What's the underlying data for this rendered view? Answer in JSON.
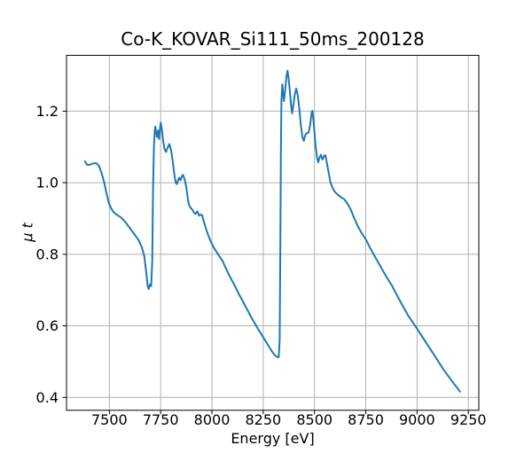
{
  "figure": {
    "background": "#ffffff"
  },
  "chart_data": {
    "type": "line",
    "title": "Co-K_KOVAR_Si111_50ms_200128",
    "xlabel": "Energy [eV]",
    "ylabel": "μ t",
    "xlim": [
      7291,
      9301
    ],
    "ylim": [
      0.364,
      1.356
    ],
    "xticks": [
      7500,
      7750,
      8000,
      8250,
      8500,
      8750,
      9000,
      9250
    ],
    "xtick_labels": [
      "7500",
      "7750",
      "8000",
      "8250",
      "8500",
      "8750",
      "9000",
      "9250"
    ],
    "yticks": [
      0.4,
      0.6,
      0.8,
      1.0,
      1.2
    ],
    "ytick_labels": [
      "0.4",
      "0.6",
      "0.8",
      "1.0",
      "1.2"
    ],
    "grid": true,
    "legend": null,
    "line_color": "#1f77b4",
    "grid_color": "#b0b0b0",
    "spine_color": "#000000",
    "series": [
      {
        "name": "mu_t",
        "points": [
          [
            7381,
            1.06
          ],
          [
            7388,
            1.053
          ],
          [
            7396,
            1.049
          ],
          [
            7408,
            1.051
          ],
          [
            7422,
            1.054
          ],
          [
            7438,
            1.054
          ],
          [
            7450,
            1.046
          ],
          [
            7462,
            1.027
          ],
          [
            7475,
            1.0
          ],
          [
            7487,
            0.968
          ],
          [
            7497,
            0.944
          ],
          [
            7508,
            0.929
          ],
          [
            7520,
            0.918
          ],
          [
            7538,
            0.91
          ],
          [
            7558,
            0.902
          ],
          [
            7578,
            0.89
          ],
          [
            7600,
            0.873
          ],
          [
            7622,
            0.856
          ],
          [
            7642,
            0.84
          ],
          [
            7658,
            0.82
          ],
          [
            7670,
            0.795
          ],
          [
            7680,
            0.748
          ],
          [
            7687,
            0.71
          ],
          [
            7692,
            0.703
          ],
          [
            7698,
            0.716
          ],
          [
            7704,
            0.711
          ],
          [
            7709,
            0.78
          ],
          [
            7713,
            0.98
          ],
          [
            7717,
            1.1
          ],
          [
            7721,
            1.145
          ],
          [
            7724,
            1.157
          ],
          [
            7728,
            1.141
          ],
          [
            7732,
            1.128
          ],
          [
            7737,
            1.146
          ],
          [
            7742,
            1.122
          ],
          [
            7747,
            1.152
          ],
          [
            7750,
            1.168
          ],
          [
            7756,
            1.148
          ],
          [
            7762,
            1.116
          ],
          [
            7769,
            1.094
          ],
          [
            7776,
            1.086
          ],
          [
            7785,
            1.099
          ],
          [
            7793,
            1.108
          ],
          [
            7801,
            1.09
          ],
          [
            7809,
            1.06
          ],
          [
            7817,
            1.022
          ],
          [
            7824,
            0.999
          ],
          [
            7829,
            0.996
          ],
          [
            7836,
            1.009
          ],
          [
            7841,
            1.014
          ],
          [
            7847,
            1.007
          ],
          [
            7854,
            1.018
          ],
          [
            7859,
            1.022
          ],
          [
            7867,
            1.009
          ],
          [
            7875,
            0.988
          ],
          [
            7883,
            0.952
          ],
          [
            7889,
            0.937
          ],
          [
            7896,
            0.93
          ],
          [
            7904,
            0.925
          ],
          [
            7913,
            0.916
          ],
          [
            7921,
            0.913
          ],
          [
            7929,
            0.92
          ],
          [
            7937,
            0.908
          ],
          [
            7946,
            0.911
          ],
          [
            7952,
            0.909
          ],
          [
            7960,
            0.892
          ],
          [
            7970,
            0.873
          ],
          [
            7982,
            0.853
          ],
          [
            7996,
            0.833
          ],
          [
            8012,
            0.816
          ],
          [
            8032,
            0.798
          ],
          [
            8052,
            0.781
          ],
          [
            8078,
            0.748
          ],
          [
            8105,
            0.719
          ],
          [
            8132,
            0.688
          ],
          [
            8162,
            0.656
          ],
          [
            8192,
            0.624
          ],
          [
            8222,
            0.594
          ],
          [
            8250,
            0.568
          ],
          [
            8272,
            0.548
          ],
          [
            8292,
            0.529
          ],
          [
            8308,
            0.517
          ],
          [
            8320,
            0.512
          ],
          [
            8326,
            0.513
          ],
          [
            8330,
            0.56
          ],
          [
            8333,
            0.8
          ],
          [
            8336,
            1.08
          ],
          [
            8339,
            1.23
          ],
          [
            8343,
            1.275
          ],
          [
            8347,
            1.252
          ],
          [
            8351,
            1.228
          ],
          [
            8357,
            1.258
          ],
          [
            8363,
            1.296
          ],
          [
            8368,
            1.313
          ],
          [
            8373,
            1.295
          ],
          [
            8379,
            1.262
          ],
          [
            8386,
            1.215
          ],
          [
            8391,
            1.194
          ],
          [
            8397,
            1.218
          ],
          [
            8404,
            1.247
          ],
          [
            8411,
            1.263
          ],
          [
            8418,
            1.246
          ],
          [
            8426,
            1.208
          ],
          [
            8433,
            1.163
          ],
          [
            8441,
            1.128
          ],
          [
            8448,
            1.117
          ],
          [
            8455,
            1.133
          ],
          [
            8463,
            1.139
          ],
          [
            8471,
            1.14
          ],
          [
            8479,
            1.162
          ],
          [
            8486,
            1.196
          ],
          [
            8490,
            1.201
          ],
          [
            8497,
            1.163
          ],
          [
            8504,
            1.11
          ],
          [
            8512,
            1.071
          ],
          [
            8518,
            1.057
          ],
          [
            8525,
            1.071
          ],
          [
            8531,
            1.078
          ],
          [
            8539,
            1.065
          ],
          [
            8547,
            1.075
          ],
          [
            8553,
            1.077
          ],
          [
            8561,
            1.053
          ],
          [
            8569,
            1.028
          ],
          [
            8577,
            1.003
          ],
          [
            8585,
            0.989
          ],
          [
            8596,
            0.977
          ],
          [
            8612,
            0.967
          ],
          [
            8630,
            0.959
          ],
          [
            8645,
            0.954
          ],
          [
            8660,
            0.942
          ],
          [
            8676,
            0.926
          ],
          [
            8692,
            0.903
          ],
          [
            8710,
            0.88
          ],
          [
            8728,
            0.861
          ],
          [
            8750,
            0.842
          ],
          [
            8772,
            0.817
          ],
          [
            8800,
            0.788
          ],
          [
            8827,
            0.761
          ],
          [
            8852,
            0.736
          ],
          [
            8876,
            0.714
          ],
          [
            8912,
            0.675
          ],
          [
            8955,
            0.63
          ],
          [
            9000,
            0.592
          ],
          [
            9045,
            0.552
          ],
          [
            9088,
            0.515
          ],
          [
            9130,
            0.477
          ],
          [
            9172,
            0.444
          ],
          [
            9210,
            0.416
          ]
        ]
      }
    ]
  }
}
